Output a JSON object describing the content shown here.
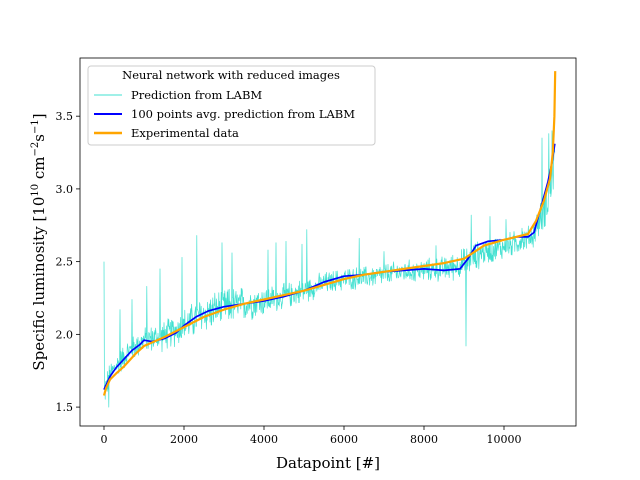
{
  "chart_data": {
    "type": "line",
    "title": "",
    "xlabel": "Datapoint [#]",
    "ylabel_parts": {
      "prefix": "Specific luminosity [10",
      "exp1": "10",
      "mid": " cm",
      "exp2": "−2",
      "mid2": "s",
      "exp3": "−1",
      "suffix": "]"
    },
    "ylabel": "Specific luminosity [10^10 cm^-2 s^-1]",
    "xlim": [
      -600,
      11800
    ],
    "ylim": [
      1.37,
      3.9
    ],
    "x_ticks": [
      0,
      2000,
      4000,
      6000,
      8000,
      10000
    ],
    "x_tick_labels": [
      "0",
      "2000",
      "4000",
      "6000",
      "8000",
      "10000"
    ],
    "y_ticks": [
      1.5,
      2.0,
      2.5,
      3.0,
      3.5
    ],
    "y_tick_labels": [
      "1.5",
      "2.0",
      "2.5",
      "3.0",
      "3.5"
    ],
    "legend": {
      "title": "Neural network with reduced images",
      "position": "upper-left",
      "entries": [
        "Prediction from LABM",
        "100 points avg. prediction from LABM",
        "Experimental data"
      ]
    },
    "series": [
      {
        "name": "Prediction from LABM",
        "color": "#40e0d0",
        "style": "noisy-thin",
        "x": [
          0,
          150,
          300,
          600,
          1000,
          1500,
          2000,
          2500,
          3000,
          3500,
          4000,
          4500,
          5000,
          5500,
          6000,
          6500,
          7000,
          7500,
          8000,
          8500,
          9000,
          9500,
          10000,
          10500,
          10700,
          11000,
          11200,
          11270
        ],
        "values": [
          1.6,
          1.72,
          1.78,
          1.88,
          1.96,
          1.99,
          2.06,
          2.14,
          2.19,
          2.21,
          2.23,
          2.26,
          2.3,
          2.35,
          2.38,
          2.39,
          2.41,
          2.43,
          2.44,
          2.45,
          2.49,
          2.57,
          2.6,
          2.65,
          2.67,
          2.85,
          3.05,
          3.2
        ],
        "noise_amplitude": [
          0.12,
          0.1,
          0.1,
          0.1,
          0.1,
          0.12,
          0.14,
          0.15,
          0.15,
          0.14,
          0.12,
          0.1,
          0.1,
          0.09,
          0.09,
          0.09,
          0.09,
          0.09,
          0.09,
          0.1,
          0.12,
          0.11,
          0.1,
          0.1,
          0.1,
          0.15,
          0.2,
          0.2
        ],
        "spikes": [
          {
            "x": 0,
            "y": 2.5
          },
          {
            "x": 120,
            "y": 1.5
          },
          {
            "x": 400,
            "y": 2.17
          },
          {
            "x": 700,
            "y": 2.24
          },
          {
            "x": 1070,
            "y": 2.33
          },
          {
            "x": 1400,
            "y": 2.45
          },
          {
            "x": 1950,
            "y": 2.53
          },
          {
            "x": 2320,
            "y": 2.68
          },
          {
            "x": 2950,
            "y": 2.63
          },
          {
            "x": 3200,
            "y": 2.56
          },
          {
            "x": 4100,
            "y": 2.58
          },
          {
            "x": 4300,
            "y": 2.63
          },
          {
            "x": 4550,
            "y": 2.64
          },
          {
            "x": 4950,
            "y": 2.62
          },
          {
            "x": 5070,
            "y": 2.72
          },
          {
            "x": 6380,
            "y": 2.66
          },
          {
            "x": 7000,
            "y": 2.57
          },
          {
            "x": 8300,
            "y": 2.61
          },
          {
            "x": 9050,
            "y": 1.92
          },
          {
            "x": 9180,
            "y": 2.82
          },
          {
            "x": 9650,
            "y": 2.81
          },
          {
            "x": 10050,
            "y": 2.79
          },
          {
            "x": 10450,
            "y": 2.73
          },
          {
            "x": 10950,
            "y": 3.35
          },
          {
            "x": 11120,
            "y": 3.38
          },
          {
            "x": 11200,
            "y": 3.4
          }
        ]
      },
      {
        "name": "100 points avg. prediction from LABM",
        "color": "#0000ff",
        "style": "line",
        "x": [
          0,
          150,
          300,
          500,
          700,
          900,
          1000,
          1200,
          1500,
          1800,
          2000,
          2300,
          2600,
          3000,
          3500,
          4000,
          4500,
          5000,
          5500,
          6000,
          6500,
          7000,
          7500,
          8000,
          8500,
          8900,
          9100,
          9300,
          9600,
          10000,
          10300,
          10600,
          10750,
          10900,
          11000,
          11100,
          11200,
          11270
        ],
        "values": [
          1.62,
          1.71,
          1.77,
          1.83,
          1.89,
          1.93,
          1.96,
          1.95,
          1.97,
          2.01,
          2.06,
          2.12,
          2.16,
          2.19,
          2.21,
          2.23,
          2.26,
          2.3,
          2.36,
          2.4,
          2.41,
          2.43,
          2.44,
          2.45,
          2.44,
          2.45,
          2.52,
          2.61,
          2.64,
          2.65,
          2.67,
          2.67,
          2.7,
          2.85,
          2.95,
          3.05,
          3.18,
          3.31
        ]
      },
      {
        "name": "Experimental data",
        "color": "#ffa500",
        "style": "line-thick",
        "x": [
          0,
          50,
          150,
          300,
          500,
          800,
          1000,
          1500,
          2000,
          2500,
          3000,
          3500,
          4000,
          4500,
          5000,
          5500,
          6000,
          6500,
          7000,
          7500,
          8000,
          8500,
          9000,
          9500,
          10000,
          10300,
          10600,
          10800,
          11000,
          11150,
          11220,
          11260,
          11280
        ],
        "values": [
          1.58,
          1.63,
          1.69,
          1.73,
          1.78,
          1.87,
          1.92,
          1.98,
          2.05,
          2.12,
          2.17,
          2.21,
          2.24,
          2.27,
          2.3,
          2.34,
          2.38,
          2.41,
          2.43,
          2.45,
          2.47,
          2.49,
          2.52,
          2.61,
          2.65,
          2.67,
          2.69,
          2.78,
          2.92,
          3.07,
          3.25,
          3.5,
          3.81
        ]
      }
    ]
  }
}
